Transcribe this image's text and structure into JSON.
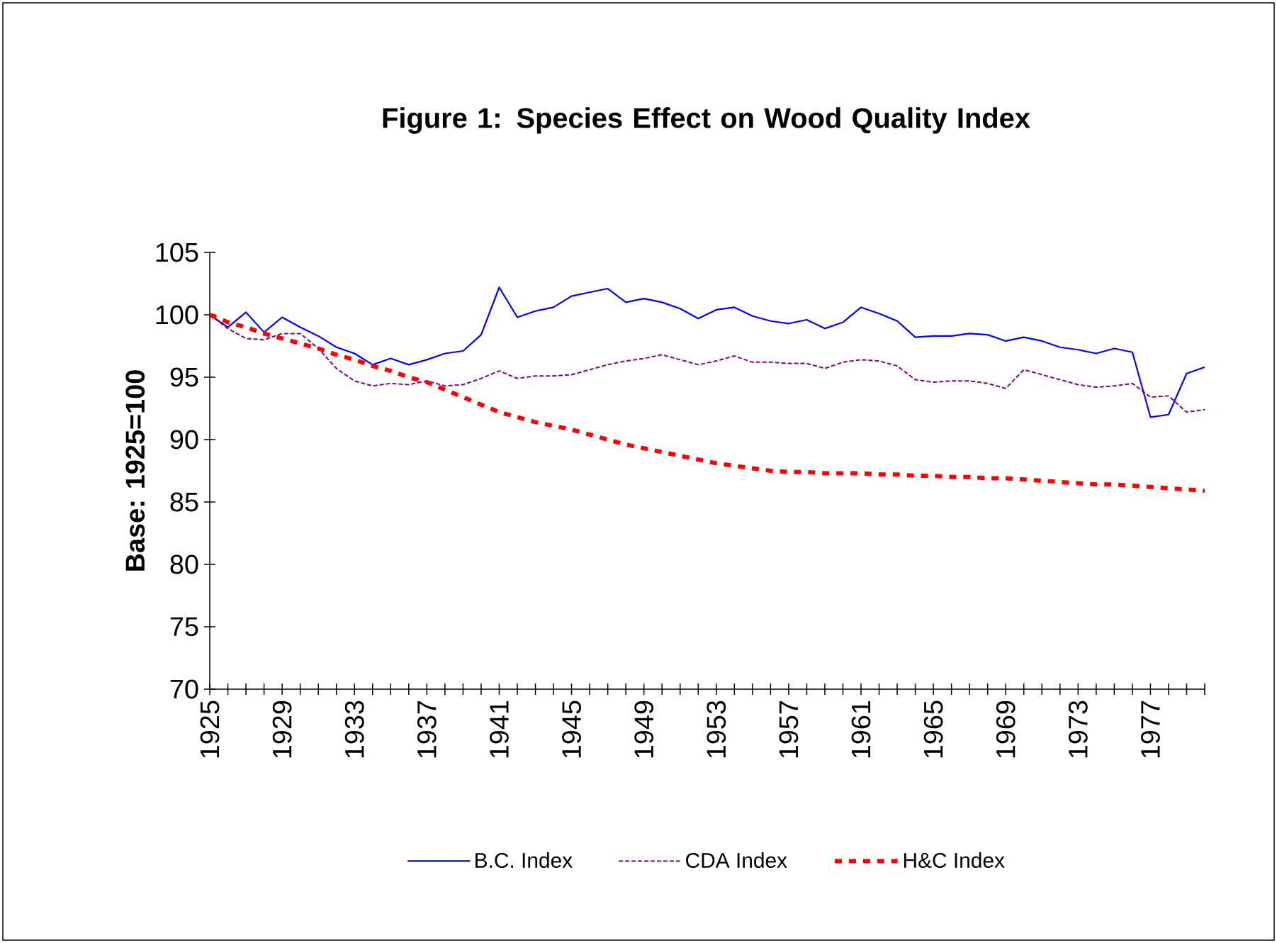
{
  "chart_data": {
    "type": "line",
    "title": "Figure 1:   Species Effect on Wood Quality Index",
    "ylabel": "Base: 1925=100",
    "categories": [
      "1925",
      null,
      null,
      null,
      "1929",
      null,
      null,
      null,
      "1933",
      null,
      null,
      null,
      "1937",
      null,
      null,
      null,
      "1941",
      null,
      null,
      null,
      "1945",
      null,
      null,
      null,
      "1949",
      null,
      null,
      null,
      "1953",
      null,
      null,
      null,
      "1957",
      null,
      null,
      null,
      "1961",
      null,
      null,
      null,
      "1965",
      null,
      null,
      null,
      "1969",
      null,
      null,
      null,
      "1973",
      null,
      null,
      null,
      "1977",
      null,
      null,
      null
    ],
    "series": [
      {
        "name": "B.C. Index",
        "color": "#0000ff",
        "line_style": "solid",
        "values": [
          100,
          99.0,
          100.2,
          98.6,
          99.8,
          99.0,
          98.3,
          97.4,
          96.9,
          96.0,
          96.5,
          96.0,
          96.4,
          96.9,
          97.1,
          98.4,
          102.2,
          99.8,
          100.3,
          100.6,
          101.5,
          101.8,
          102.1,
          101.0,
          101.3,
          101.0,
          100.5,
          99.7,
          100.4,
          100.6,
          99.9,
          99.5,
          99.3,
          99.6,
          98.9,
          99.4,
          100.6,
          100.1,
          99.5,
          98.2,
          98.3,
          98.3,
          98.5,
          98.4,
          97.9,
          98.2,
          97.9,
          97.4,
          97.2,
          96.9,
          97.3,
          97.0,
          91.8,
          92.0,
          95.3,
          95.8
        ]
      },
      {
        "name": "CDA Index",
        "color": "#800080",
        "line_style": "dashed",
        "values": [
          100,
          98.9,
          98.1,
          98.0,
          98.5,
          98.5,
          97.3,
          95.7,
          94.7,
          94.3,
          94.5,
          94.4,
          94.7,
          94.3,
          94.4,
          94.9,
          95.5,
          94.9,
          95.1,
          95.1,
          95.2,
          95.6,
          96.0,
          96.3,
          96.5,
          96.8,
          96.4,
          96.0,
          96.3,
          96.7,
          96.2,
          96.2,
          96.1,
          96.1,
          95.7,
          96.2,
          96.4,
          96.3,
          95.9,
          94.8,
          94.6,
          94.7,
          94.7,
          94.5,
          94.1,
          95.6,
          95.2,
          94.8,
          94.4,
          94.2,
          94.3,
          94.5,
          93.4,
          93.5,
          92.2,
          92.4
        ]
      },
      {
        "name": "H&C Index",
        "color": "#ff0000",
        "line_style": "dotted",
        "values": [
          100,
          99.4,
          99.0,
          98.5,
          98.1,
          97.7,
          97.3,
          96.8,
          96.4,
          95.9,
          95.5,
          95.0,
          94.6,
          94.0,
          93.4,
          92.8,
          92.2,
          91.8,
          91.4,
          91.1,
          90.8,
          90.4,
          90.0,
          89.6,
          89.3,
          89.0,
          88.7,
          88.4,
          88.1,
          87.9,
          87.7,
          87.5,
          87.4,
          87.4,
          87.3,
          87.3,
          87.3,
          87.2,
          87.2,
          87.1,
          87.1,
          87.0,
          87.0,
          86.9,
          86.9,
          86.8,
          86.7,
          86.6,
          86.5,
          86.4,
          86.4,
          86.3,
          86.2,
          86.1,
          86.0,
          85.9
        ]
      }
    ],
    "ylim": [
      70,
      105
    ],
    "yticks": [
      70,
      75,
      80,
      85,
      90,
      95,
      100,
      105
    ],
    "grid": false,
    "legend": "bottom",
    "marker": "none"
  }
}
